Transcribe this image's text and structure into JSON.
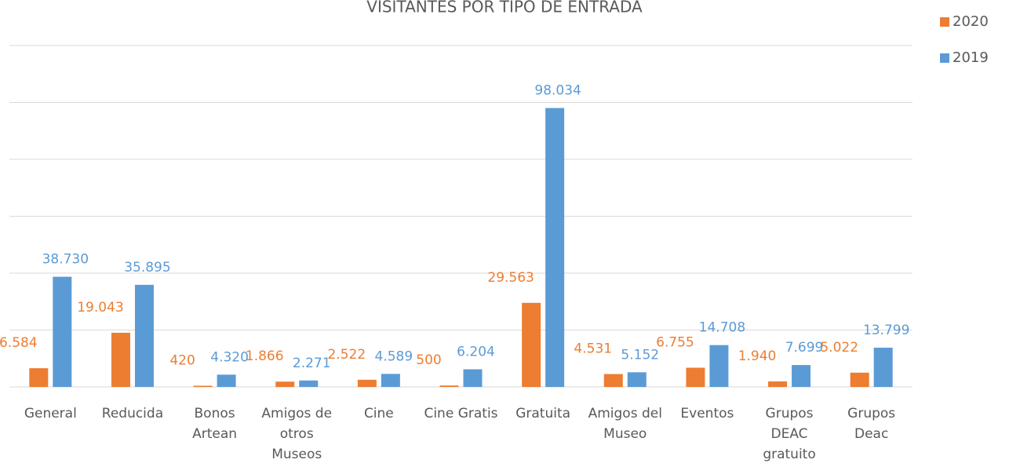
{
  "chart_data": {
    "type": "bar",
    "title": "VISITANTES POR TIPO DE ENTRADA",
    "categories": [
      "General",
      "Reducida",
      "Bonos Artean",
      "Amigos de otros Museos",
      "Cine",
      "Cine Gratis",
      "Gratuita",
      "Amigos del Museo",
      "Eventos",
      "Grupos DEAC gratuito",
      "Grupos Deac"
    ],
    "series": [
      {
        "name": "2020",
        "color": "#ed7d31",
        "values": [
          6584,
          19043,
          420,
          1866,
          2522,
          500,
          29563,
          4531,
          6755,
          1940,
          5022
        ],
        "value_labels": [
          "6.584",
          "19.043",
          "420",
          "1.866",
          "2.522",
          "500",
          "29.563",
          "4.531",
          "6.755",
          "1.940",
          "5.022"
        ]
      },
      {
        "name": "2019",
        "color": "#5b9bd5",
        "values": [
          38730,
          35895,
          4320,
          2271,
          4589,
          6204,
          98034,
          5152,
          14708,
          7699,
          13799
        ],
        "value_labels": [
          "38.730",
          "35.895",
          "4.320",
          "2.271",
          "4.589",
          "6.204",
          "98.034",
          "5.152",
          "14.708",
          "7.699",
          "13.799"
        ]
      }
    ],
    "ylim": [
      0,
      120000
    ],
    "yticks": [
      0,
      20000,
      40000,
      60000,
      80000,
      100000,
      120000
    ],
    "grid": true,
    "legend": "top-right"
  }
}
